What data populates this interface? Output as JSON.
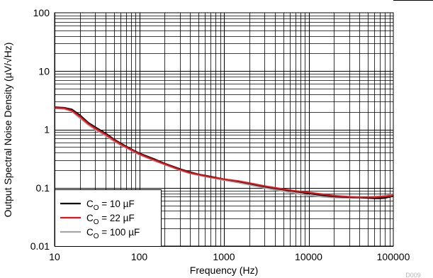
{
  "chart_data": {
    "type": "line",
    "xlabel": "Frequency (Hz)",
    "ylabel": "Output Spectral Noise Density (µV/√Hz)",
    "x_scale": "log",
    "y_scale": "log",
    "xlim": [
      10,
      100000
    ],
    "ylim": [
      0.01,
      100
    ],
    "x_ticks": [
      "10",
      "100",
      "1000",
      "10000",
      "100000"
    ],
    "y_ticks": [
      "0.01",
      "0.1",
      "1",
      "10",
      "100"
    ],
    "grid": true,
    "legend_position": "bottom-left",
    "watermark": "D009",
    "series": [
      {
        "name": "CO = 10 µF",
        "legend": {
          "main": "C",
          "sub": "O",
          "rest": " = 10 µF"
        },
        "color": "#000000",
        "x": [
          10,
          13,
          16,
          20,
          25,
          30,
          40,
          50,
          60,
          80,
          100,
          150,
          200,
          300,
          400,
          500,
          700,
          1000,
          1500,
          2000,
          3000,
          4000,
          5000,
          7000,
          10000,
          15000,
          20000,
          30000,
          40000,
          50000,
          60000,
          70000,
          80000,
          100000
        ],
        "y": [
          2.4,
          2.35,
          2.2,
          1.75,
          1.3,
          1.1,
          0.86,
          0.68,
          0.58,
          0.46,
          0.39,
          0.31,
          0.26,
          0.21,
          0.185,
          0.17,
          0.155,
          0.14,
          0.128,
          0.118,
          0.105,
          0.098,
          0.093,
          0.086,
          0.08,
          0.074,
          0.071,
          0.069,
          0.068,
          0.067,
          0.066,
          0.066,
          0.067,
          0.072
        ]
      },
      {
        "name": "CO = 22 µF",
        "legend": {
          "main": "C",
          "sub": "O",
          "rest": " = 22 µF"
        },
        "color": "#e8121d",
        "x": [
          10,
          13,
          16,
          20,
          25,
          30,
          40,
          50,
          60,
          80,
          100,
          150,
          200,
          300,
          400,
          500,
          700,
          1000,
          1500,
          2000,
          3000,
          4000,
          5000,
          7000,
          10000,
          15000,
          20000,
          30000,
          40000,
          50000,
          60000,
          70000,
          80000,
          100000
        ],
        "y": [
          2.35,
          2.3,
          2.1,
          1.65,
          1.25,
          1.05,
          0.82,
          0.66,
          0.56,
          0.45,
          0.38,
          0.3,
          0.255,
          0.205,
          0.18,
          0.168,
          0.152,
          0.14,
          0.13,
          0.12,
          0.107,
          0.1,
          0.095,
          0.088,
          0.083,
          0.077,
          0.073,
          0.07,
          0.069,
          0.069,
          0.069,
          0.07,
          0.071,
          0.074
        ]
      },
      {
        "name": "CO = 100 µF",
        "legend": {
          "main": "C",
          "sub": "O",
          "rest": " = 100 µF"
        },
        "color": "#a6a6a6",
        "x": [
          10,
          13,
          16,
          20,
          25,
          30,
          40,
          50,
          60,
          80,
          100,
          150,
          200,
          300,
          400,
          500,
          700,
          1000,
          1500,
          2000,
          3000,
          4000,
          5000,
          7000,
          10000,
          15000,
          20000,
          30000,
          40000,
          50000,
          60000,
          70000,
          80000,
          100000
        ],
        "y": [
          2.3,
          2.25,
          2.05,
          1.55,
          1.2,
          1.0,
          0.78,
          0.63,
          0.54,
          0.44,
          0.37,
          0.29,
          0.25,
          0.2,
          0.176,
          0.165,
          0.15,
          0.135,
          0.122,
          0.112,
          0.1,
          0.092,
          0.087,
          0.08,
          0.074,
          0.07,
          0.068,
          0.067,
          0.068,
          0.069,
          0.07,
          0.071,
          0.073,
          0.077
        ]
      }
    ]
  }
}
